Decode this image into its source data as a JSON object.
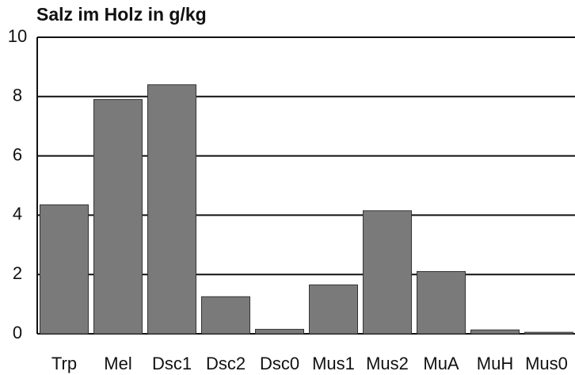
{
  "chart_data": {
    "type": "bar",
    "title": "Salz im Holz in g/kg",
    "categories": [
      "Trp",
      "Mel",
      "Dsc1",
      "Dsc2",
      "Dsc0",
      "Mus1",
      "Mus2",
      "MuA",
      "MuH",
      "Mus0"
    ],
    "values": [
      4.35,
      7.9,
      8.4,
      1.25,
      0.15,
      1.65,
      4.15,
      2.1,
      0.13,
      0.05
    ],
    "color": "#7a7a7a",
    "ylim": [
      0,
      10
    ],
    "yticks": [
      0,
      2,
      4,
      6,
      8,
      10
    ],
    "grid": true
  }
}
